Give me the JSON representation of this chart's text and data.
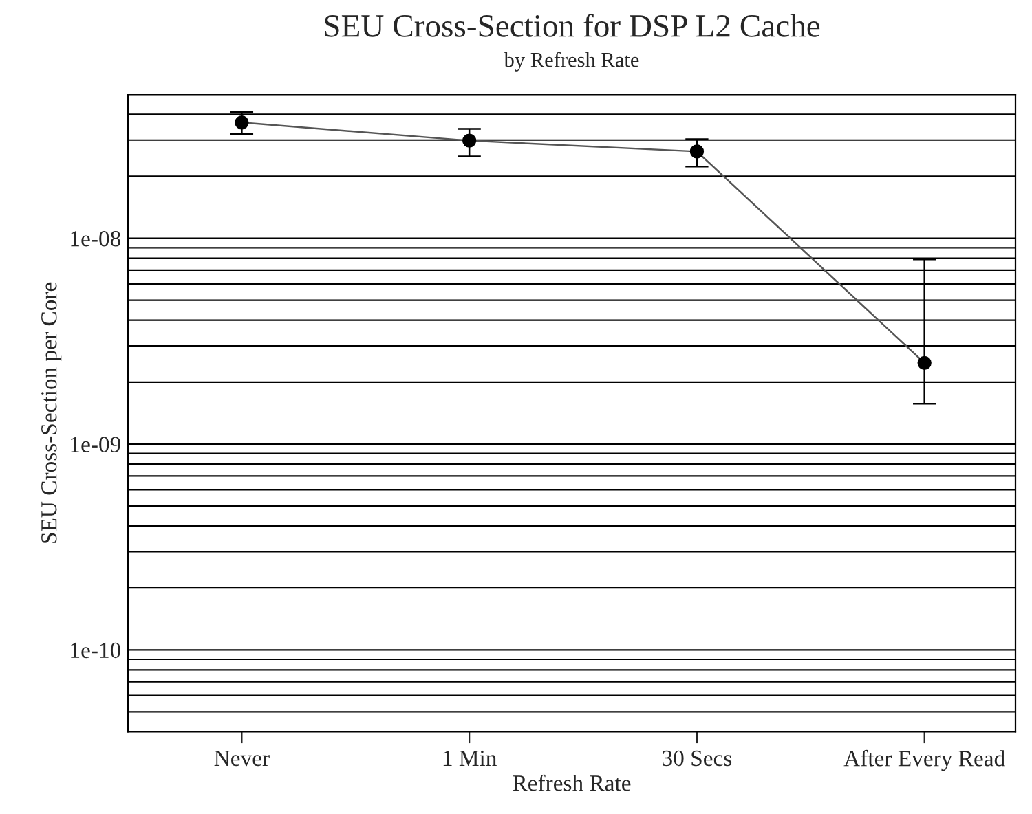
{
  "chart_data": {
    "type": "line",
    "title": "SEU Cross-Section for DSP L2 Cache",
    "subtitle": "by Refresh Rate",
    "xlabel": "Refresh Rate",
    "ylabel": "SEU Cross-Section per Core",
    "categories": [
      "Never",
      "1 Min",
      "30 Secs",
      "After Every Read"
    ],
    "series": [
      {
        "color": "#000000",
        "values": [
          3.65e-08,
          2.98e-08,
          2.64e-08,
          2.48e-09
        ],
        "errors": [
          [
            3.2e-08,
            4.1e-08
          ],
          [
            2.5e-08,
            3.4e-08
          ],
          [
            2.23e-08,
            3.03e-08
          ],
          [
            1.57e-09,
            7.9e-09
          ]
        ]
      }
    ],
    "log": true,
    "ylim": [
      4e-11,
      5e-08
    ],
    "yticks": [
      {
        "value": 5e-11,
        "label": null
      },
      {
        "value": 6e-11,
        "label": null
      },
      {
        "value": 7e-11,
        "label": null
      },
      {
        "value": 8e-11,
        "label": null
      },
      {
        "value": 9e-11,
        "label": null
      },
      {
        "value": 1e-10,
        "label": "1e-10"
      },
      {
        "value": 2e-10,
        "label": null
      },
      {
        "value": 3e-10,
        "label": null
      },
      {
        "value": 4e-10,
        "label": null
      },
      {
        "value": 5e-10,
        "label": null
      },
      {
        "value": 6e-10,
        "label": null
      },
      {
        "value": 7e-10,
        "label": null
      },
      {
        "value": 8e-10,
        "label": null
      },
      {
        "value": 9e-10,
        "label": null
      },
      {
        "value": 1e-09,
        "label": "1e-09"
      },
      {
        "value": 2e-09,
        "label": null
      },
      {
        "value": 3e-09,
        "label": null
      },
      {
        "value": 4e-09,
        "label": null
      },
      {
        "value": 5e-09,
        "label": null
      },
      {
        "value": 6e-09,
        "label": null
      },
      {
        "value": 7e-09,
        "label": null
      },
      {
        "value": 8e-09,
        "label": null
      },
      {
        "value": 9e-09,
        "label": null
      },
      {
        "value": 1e-08,
        "label": "1e-08"
      },
      {
        "value": 2e-08,
        "label": null
      },
      {
        "value": 3e-08,
        "label": null
      },
      {
        "value": 4e-08,
        "label": null
      }
    ],
    "grid": "y",
    "marker": "circle",
    "line_style": "solid"
  }
}
